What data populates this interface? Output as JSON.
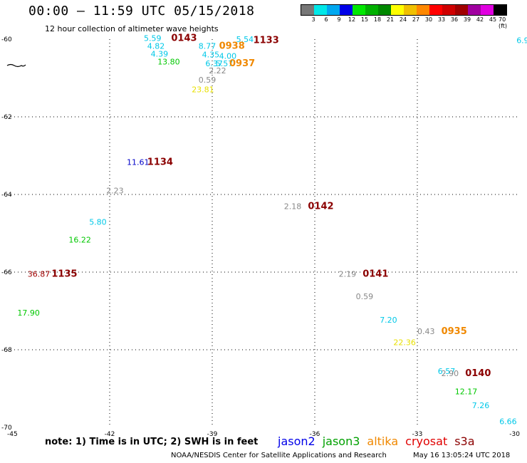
{
  "header": {
    "title": "00:00 – 11:59 UTC 05/15/2018",
    "subtitle": "12 hour collection of altimeter wave heights"
  },
  "scale": {
    "colors": [
      "#777777",
      "#00e8e8",
      "#00a8f0",
      "#0000e8",
      "#00e800",
      "#00b000",
      "#008800",
      "#ffff00",
      "#f0c000",
      "#ff8800",
      "#ff0000",
      "#d00000",
      "#a00000",
      "#a000a0",
      "#e000e0",
      "#000000"
    ],
    "labels": [
      "3",
      "6",
      "9",
      "12",
      "15",
      "18",
      "21",
      "24",
      "27",
      "30",
      "33",
      "36",
      "39",
      "42",
      "45",
      "70 (ft)"
    ]
  },
  "axes": {
    "lat_labels": [
      "-60",
      "-62",
      "-64",
      "-66",
      "-68",
      "-70"
    ],
    "lon_labels": [
      "-45",
      "-42",
      "-39",
      "-36",
      "-33",
      "-30"
    ]
  },
  "points": [
    {
      "t": "5.59",
      "lon": -41.0,
      "lat": -60.05,
      "c": "#00c8e8"
    },
    {
      "t": "4.82",
      "lon": -40.9,
      "lat": -60.25,
      "c": "#00c8e8"
    },
    {
      "t": "4.39",
      "lon": -40.8,
      "lat": -60.45,
      "c": "#00c8e8"
    },
    {
      "t": "13.80",
      "lon": -40.6,
      "lat": -60.65,
      "c": "#00c800"
    },
    {
      "t": "8.77",
      "lon": -39.4,
      "lat": -60.25,
      "c": "#00c8e8"
    },
    {
      "t": "4.35",
      "lon": -39.3,
      "lat": -60.47,
      "c": "#00c8e8"
    },
    {
      "t": "4.00",
      "lon": -38.8,
      "lat": -60.5,
      "c": "#00c8e8"
    },
    {
      "t": "6.37",
      "lon": -39.2,
      "lat": -60.7,
      "c": "#00c8e8"
    },
    {
      "t": "5.57",
      "lon": -38.9,
      "lat": -60.7,
      "c": "#00c8e8"
    },
    {
      "t": "5.54",
      "lon": -38.3,
      "lat": -60.07,
      "c": "#00c8e8"
    },
    {
      "t": "2.22",
      "lon": -39.1,
      "lat": -60.88,
      "c": "#888888"
    },
    {
      "t": "0.59",
      "lon": -39.4,
      "lat": -61.12,
      "c": "#888888"
    },
    {
      "t": "23.81",
      "lon": -39.6,
      "lat": -61.37,
      "c": "#e8e000"
    },
    {
      "t": "11.61",
      "lon": -41.5,
      "lat": -63.24,
      "c": "#0000c8"
    },
    {
      "t": "2.23",
      "lon": -42.1,
      "lat": -63.97,
      "c": "#888888"
    },
    {
      "t": "2.18",
      "lon": -36.9,
      "lat": -64.38,
      "c": "#888888"
    },
    {
      "t": "5.80",
      "lon": -42.6,
      "lat": -64.78,
      "c": "#00c8e8"
    },
    {
      "t": "16.22",
      "lon": -43.2,
      "lat": -65.24,
      "c": "#00c800"
    },
    {
      "t": "36.87",
      "lon": -44.4,
      "lat": -66.12,
      "c": "#a00000"
    },
    {
      "t": "2.19",
      "lon": -35.3,
      "lat": -66.12,
      "c": "#888888"
    },
    {
      "t": "17.90",
      "lon": -44.7,
      "lat": -67.12,
      "c": "#00c800"
    },
    {
      "t": "0.59",
      "lon": -34.8,
      "lat": -66.7,
      "c": "#888888"
    },
    {
      "t": "7.20",
      "lon": -34.1,
      "lat": -67.3,
      "c": "#00c8e8"
    },
    {
      "t": "0.43",
      "lon": -33.0,
      "lat": -67.6,
      "c": "#888888"
    },
    {
      "t": "22.36",
      "lon": -33.7,
      "lat": -67.88,
      "c": "#e8e000"
    },
    {
      "t": "6.57",
      "lon": -32.4,
      "lat": -68.62,
      "c": "#00c8e8"
    },
    {
      "t": "2.90",
      "lon": -32.3,
      "lat": -68.68,
      "c": "#888888"
    },
    {
      "t": "12.17",
      "lon": -31.9,
      "lat": -69.15,
      "c": "#00c800"
    },
    {
      "t": "7.26",
      "lon": -31.4,
      "lat": -69.5,
      "c": "#00c8e8"
    },
    {
      "t": "6.66",
      "lon": -30.6,
      "lat": -69.92,
      "c": "#00c8e8"
    },
    {
      "t": "6.9",
      "lon": -30.1,
      "lat": -60.1,
      "c": "#00c8e8"
    }
  ],
  "times": [
    {
      "t": "0143",
      "lon": -40.2,
      "lat": -60.05,
      "c": "#8b0000"
    },
    {
      "t": "1133",
      "lon": -37.8,
      "lat": -60.1,
      "c": "#8b0000"
    },
    {
      "t": "0938",
      "lon": -38.8,
      "lat": -60.25,
      "c": "#f08800"
    },
    {
      "t": "0937",
      "lon": -38.5,
      "lat": -60.7,
      "c": "#f08800"
    },
    {
      "t": "1134",
      "lon": -40.9,
      "lat": -63.24,
      "c": "#8b0000"
    },
    {
      "t": "0142",
      "lon": -36.2,
      "lat": -64.38,
      "c": "#8b0000"
    },
    {
      "t": "1135",
      "lon": -43.7,
      "lat": -66.12,
      "c": "#8b0000"
    },
    {
      "t": "0141",
      "lon": -34.6,
      "lat": -66.12,
      "c": "#8b0000"
    },
    {
      "t": "0935",
      "lon": -32.3,
      "lat": -67.6,
      "c": "#f08800"
    },
    {
      "t": "0140",
      "lon": -31.6,
      "lat": -68.68,
      "c": "#8b0000"
    }
  ],
  "footer": {
    "note": "note: 1) Time is in UTC; 2) SWH is in feet",
    "credit": "NOAA/NESDIS Center for Satellite Applications and Research",
    "timestamp": "May 16 13:05:24 UTC 2018"
  },
  "satellites": [
    {
      "name": "jason2",
      "color": "#0000e8"
    },
    {
      "name": "jason3",
      "color": "#00a000"
    },
    {
      "name": "altika",
      "color": "#f08800"
    },
    {
      "name": "cryosat",
      "color": "#e00000"
    },
    {
      "name": "s3a",
      "color": "#8b0000"
    }
  ]
}
